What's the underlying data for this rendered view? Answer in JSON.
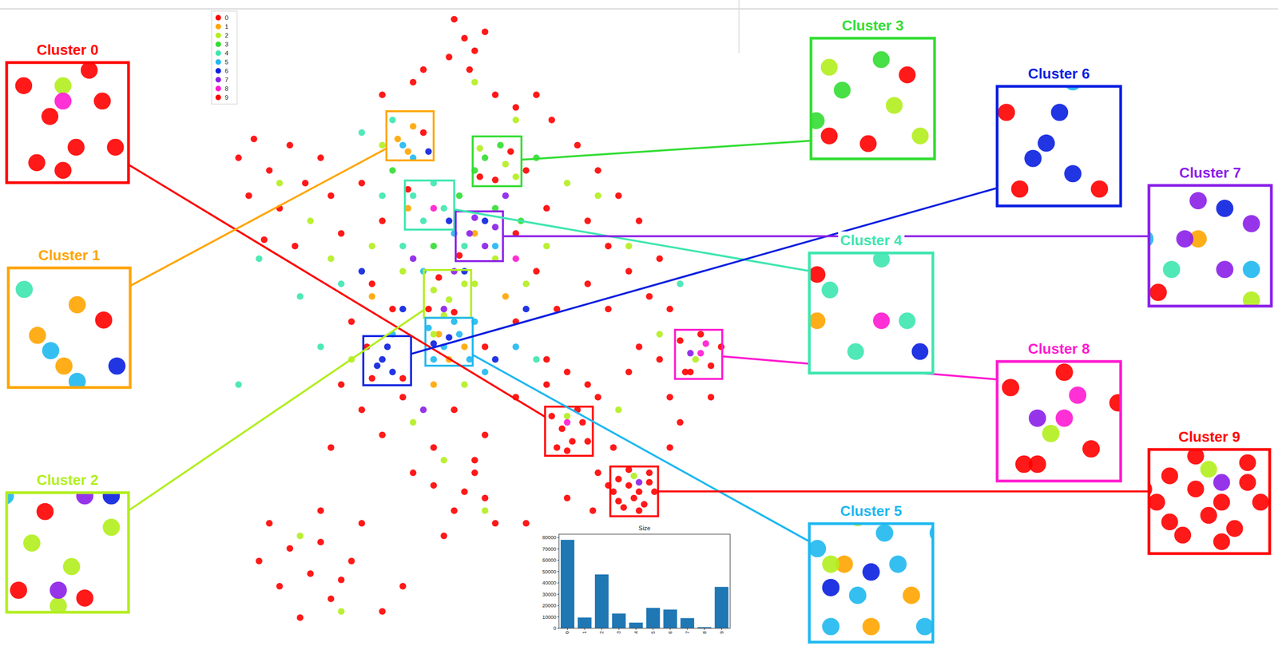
{
  "chart_data": [
    {
      "type": "scatter",
      "xlim": [
        0,
        100
      ],
      "ylim": [
        0,
        100
      ],
      "tick_labels": false,
      "legend": "top-left",
      "series": [
        {
          "name": "0",
          "color": "#ff0000",
          "x": [
            44,
            46,
            43,
            48,
            50,
            47,
            30,
            36,
            52,
            56,
            60,
            63,
            38,
            2,
            5,
            8,
            12,
            15,
            10,
            4,
            18,
            20,
            7,
            13,
            22,
            68,
            72,
            76,
            80,
            70,
            74,
            78,
            84,
            82,
            70,
            86,
            74,
            26,
            30,
            28,
            24,
            32,
            56,
            60,
            62,
            58,
            64,
            50,
            56,
            22,
            26,
            30,
            34,
            40,
            44,
            48,
            20,
            36,
            50,
            63,
            65,
            67,
            69,
            64,
            68,
            66,
            70,
            62,
            66,
            70,
            72,
            74,
            75,
            72,
            80,
            84,
            90,
            94,
            96,
            86,
            78,
            88,
            92,
            94,
            89,
            76,
            79,
            82,
            80,
            77,
            83,
            8,
            12,
            16,
            20,
            24,
            10,
            14,
            26,
            6,
            18,
            40,
            44,
            48,
            52,
            42,
            50,
            30,
            34,
            60,
            64,
            68,
            58,
            27,
            28,
            34,
            38,
            49,
            52,
            55,
            39,
            44,
            41,
            35,
            45
          ],
          "y": [
            98,
            95,
            92,
            93,
            96,
            90,
            86,
            88,
            86,
            84,
            86,
            82,
            90,
            76,
            79,
            74,
            78,
            72,
            68,
            70,
            76,
            70,
            63,
            62,
            64,
            78,
            74,
            70,
            66,
            66,
            62,
            58,
            60,
            54,
            56,
            52,
            52,
            72,
            66,
            56,
            50,
            52,
            64,
            58,
            68,
            74,
            52,
            46,
            50,
            40,
            36,
            32,
            38,
            30,
            36,
            28,
            30,
            26,
            32,
            35,
            33,
            31,
            34,
            30,
            36,
            29.5,
            31,
            44,
            42,
            40,
            26,
            24,
            30,
            38,
            46,
            44,
            42,
            38,
            46,
            38,
            42,
            47,
            48,
            43,
            42,
            25,
            22,
            26,
            20,
            20.5,
            23,
            18,
            14,
            10,
            6,
            12,
            8,
            3,
            18,
            12,
            20,
            24,
            20,
            26,
            18,
            16,
            22,
            4,
            8,
            10,
            14,
            16,
            18,
            46,
            41,
            41,
            80,
            73,
            72.5,
            77,
            52,
            51.5,
            57,
            71,
            60.5
          ]
        },
        {
          "name": "1",
          "color": "#ffa500",
          "x": [
            33,
            35,
            36,
            41,
            46,
            43,
            48,
            40,
            28,
            54,
            35
          ],
          "y": [
            79,
            77,
            81,
            48,
            46,
            44,
            64,
            40,
            54,
            54,
            68
          ]
        },
        {
          "name": "2",
          "color": "#b2ee1e",
          "x": [
            10,
            16,
            28,
            34,
            40,
            48,
            52,
            58,
            62,
            66,
            72,
            78,
            36,
            42,
            46,
            24,
            76,
            84,
            14,
            22,
            50,
            56,
            48,
            30,
            20,
            40,
            43,
            46,
            42,
            49,
            54,
            56,
            66,
            79,
            91
          ],
          "y": [
            72,
            66,
            62,
            58,
            48,
            56,
            60,
            56,
            62,
            72,
            70,
            62,
            34,
            28,
            40,
            44,
            36,
            48,
            16,
            4,
            20,
            82,
            88,
            78,
            60,
            55,
            53.5,
            56,
            51,
            77.5,
            75,
            73,
            35,
            25.5,
            44
          ]
        },
        {
          "name": "3",
          "color": "#33dd33",
          "x": [
            50,
            53,
            57,
            45,
            52,
            40,
            60,
            32,
            48
          ],
          "y": [
            76,
            78,
            66,
            70,
            68,
            62,
            76,
            74,
            74
          ]
        },
        {
          "name": "4",
          "color": "#3ee6b0",
          "x": [
            36,
            38,
            42,
            40,
            30,
            26,
            46,
            22,
            18,
            60,
            14,
            34,
            6,
            88,
            70,
            84,
            2,
            32
          ],
          "y": [
            70,
            66,
            68,
            72,
            70,
            80,
            62,
            56,
            46,
            44,
            54,
            62,
            60,
            56,
            8,
            14,
            40,
            82
          ]
        },
        {
          "name": "5",
          "color": "#1fb8f0",
          "x": [
            39,
            42,
            45,
            47,
            40,
            44,
            34,
            36,
            38,
            50,
            48,
            32,
            56,
            44,
            52
          ],
          "y": [
            49,
            46,
            48,
            44,
            44,
            50,
            78,
            76,
            58,
            42,
            50,
            48,
            46,
            64,
            62
          ]
        },
        {
          "name": "6",
          "color": "#0a1fe0",
          "x": [
            30,
            31,
            32,
            29,
            43,
            40,
            43,
            39,
            46,
            34,
            50,
            58,
            26,
            52
          ],
          "y": [
            44,
            46,
            42,
            43,
            47.5,
            46.5,
            66,
            77,
            58,
            52,
            66,
            52,
            58,
            44
          ]
        },
        {
          "name": "7",
          "color": "#8b1ee8",
          "x": [
            47,
            50,
            52,
            48,
            44,
            36,
            54,
            38,
            90,
            80,
            42
          ],
          "y": [
            64,
            62,
            65,
            66.5,
            58,
            60,
            70,
            36,
            45,
            24.5,
            52
          ]
        },
        {
          "name": "8",
          "color": "#ff1ad0",
          "x": [
            92,
            93,
            66,
            56,
            40
          ],
          "y": [
            45,
            46.5,
            34,
            60,
            68
          ]
        },
        {
          "name": "9",
          "color": "#ff0000",
          "x": [
            75,
            78,
            81,
            78,
            82,
            76,
            80,
            71,
            66,
            86,
            88,
            62,
            18,
            22,
            46,
            56
          ],
          "y": [
            23,
            24,
            21,
            26.5,
            24.5,
            21.5,
            23,
            20,
            22,
            30,
            34,
            40,
            15,
            9,
            23,
            38
          ]
        }
      ]
    },
    {
      "type": "bar",
      "title": "Size",
      "categories": [
        "0",
        "1",
        "2",
        "3",
        "4",
        "5",
        "6",
        "7",
        "8",
        "9"
      ],
      "values": [
        78000,
        9500,
        47500,
        13000,
        5000,
        18000,
        16500,
        9000,
        1000,
        36500
      ],
      "color": "#1f77b4",
      "ylim": [
        0,
        83000
      ],
      "yticks": [
        0,
        10000,
        20000,
        30000,
        40000,
        50000,
        60000,
        70000,
        80000
      ]
    }
  ],
  "insets": [
    {
      "title": "Cluster 0",
      "cluster": 0,
      "xlim": [
        61.7,
        71.0
      ],
      "ylim": [
        28.7,
        36.5
      ]
    },
    {
      "title": "Cluster 1",
      "cluster": 1,
      "xlim": [
        30.8,
        40.0
      ],
      "ylim": [
        75.6,
        83.4
      ]
    },
    {
      "title": "Cluster 2",
      "cluster": 2,
      "xlim": [
        38.1,
        47.3
      ],
      "ylim": [
        50.6,
        58.2
      ]
    },
    {
      "title": "Cluster 3",
      "cluster": 3,
      "xlim": [
        47.6,
        57.1
      ],
      "ylim": [
        71.5,
        79.4
      ]
    },
    {
      "title": "Cluster 4",
      "cluster": 4,
      "xlim": [
        34.4,
        44.0
      ],
      "ylim": [
        64.6,
        72.4
      ]
    },
    {
      "title": "Cluster 5",
      "cluster": 5,
      "xlim": [
        38.4,
        47.6
      ],
      "ylim": [
        43.0,
        50.6
      ]
    },
    {
      "title": "Cluster 6",
      "cluster": 6,
      "xlim": [
        26.3,
        35.6
      ],
      "ylim": [
        39.9,
        47.7
      ]
    },
    {
      "title": "Cluster 7",
      "cluster": 7,
      "xlim": [
        44.3,
        53.5
      ],
      "ylim": [
        59.6,
        67.5
      ]
    },
    {
      "title": "Cluster 8",
      "cluster": 8,
      "xlim": [
        87.0,
        96.2
      ],
      "ylim": [
        40.9,
        48.7
      ]
    },
    {
      "title": "Cluster 9",
      "cluster": 9,
      "xlim": [
        74.4,
        83.7
      ],
      "ylim": [
        19.1,
        27.0
      ]
    }
  ]
}
